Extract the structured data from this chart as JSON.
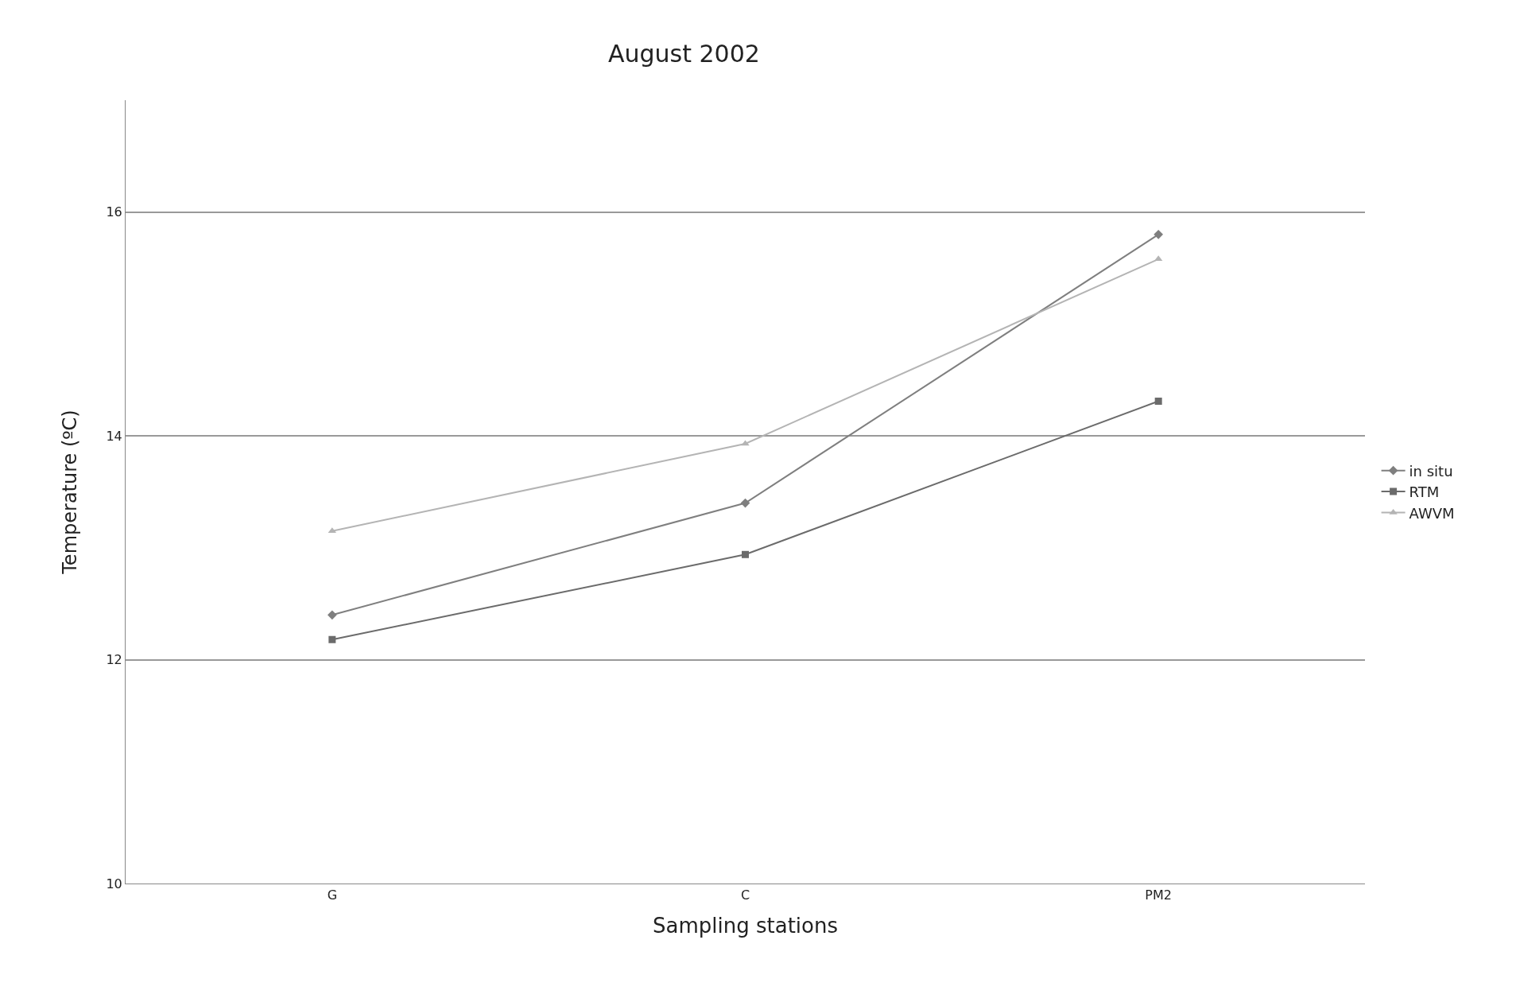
{
  "chart_data": {
    "type": "line",
    "title": "August 2002",
    "xlabel": "Sampling stations",
    "ylabel": "Temperature (ºC)",
    "categories": [
      "G",
      "C",
      "PM2"
    ],
    "series": [
      {
        "name": "in situ",
        "color": "#7f7f7f",
        "values": [
          12.4,
          13.4,
          15.8
        ],
        "marker": "diamond"
      },
      {
        "name": "RTM",
        "color": "#6b6b6b",
        "values": [
          12.18,
          12.94,
          14.31
        ],
        "marker": "square"
      },
      {
        "name": "AWVM",
        "color": "#b4b4b4",
        "values": [
          13.15,
          13.93,
          15.58
        ],
        "marker": "triangle"
      }
    ],
    "ylim": [
      10,
      17
    ],
    "yticks": [
      10,
      12,
      14,
      16
    ],
    "grid": "y",
    "legend": "right",
    "line_style": "solid"
  }
}
